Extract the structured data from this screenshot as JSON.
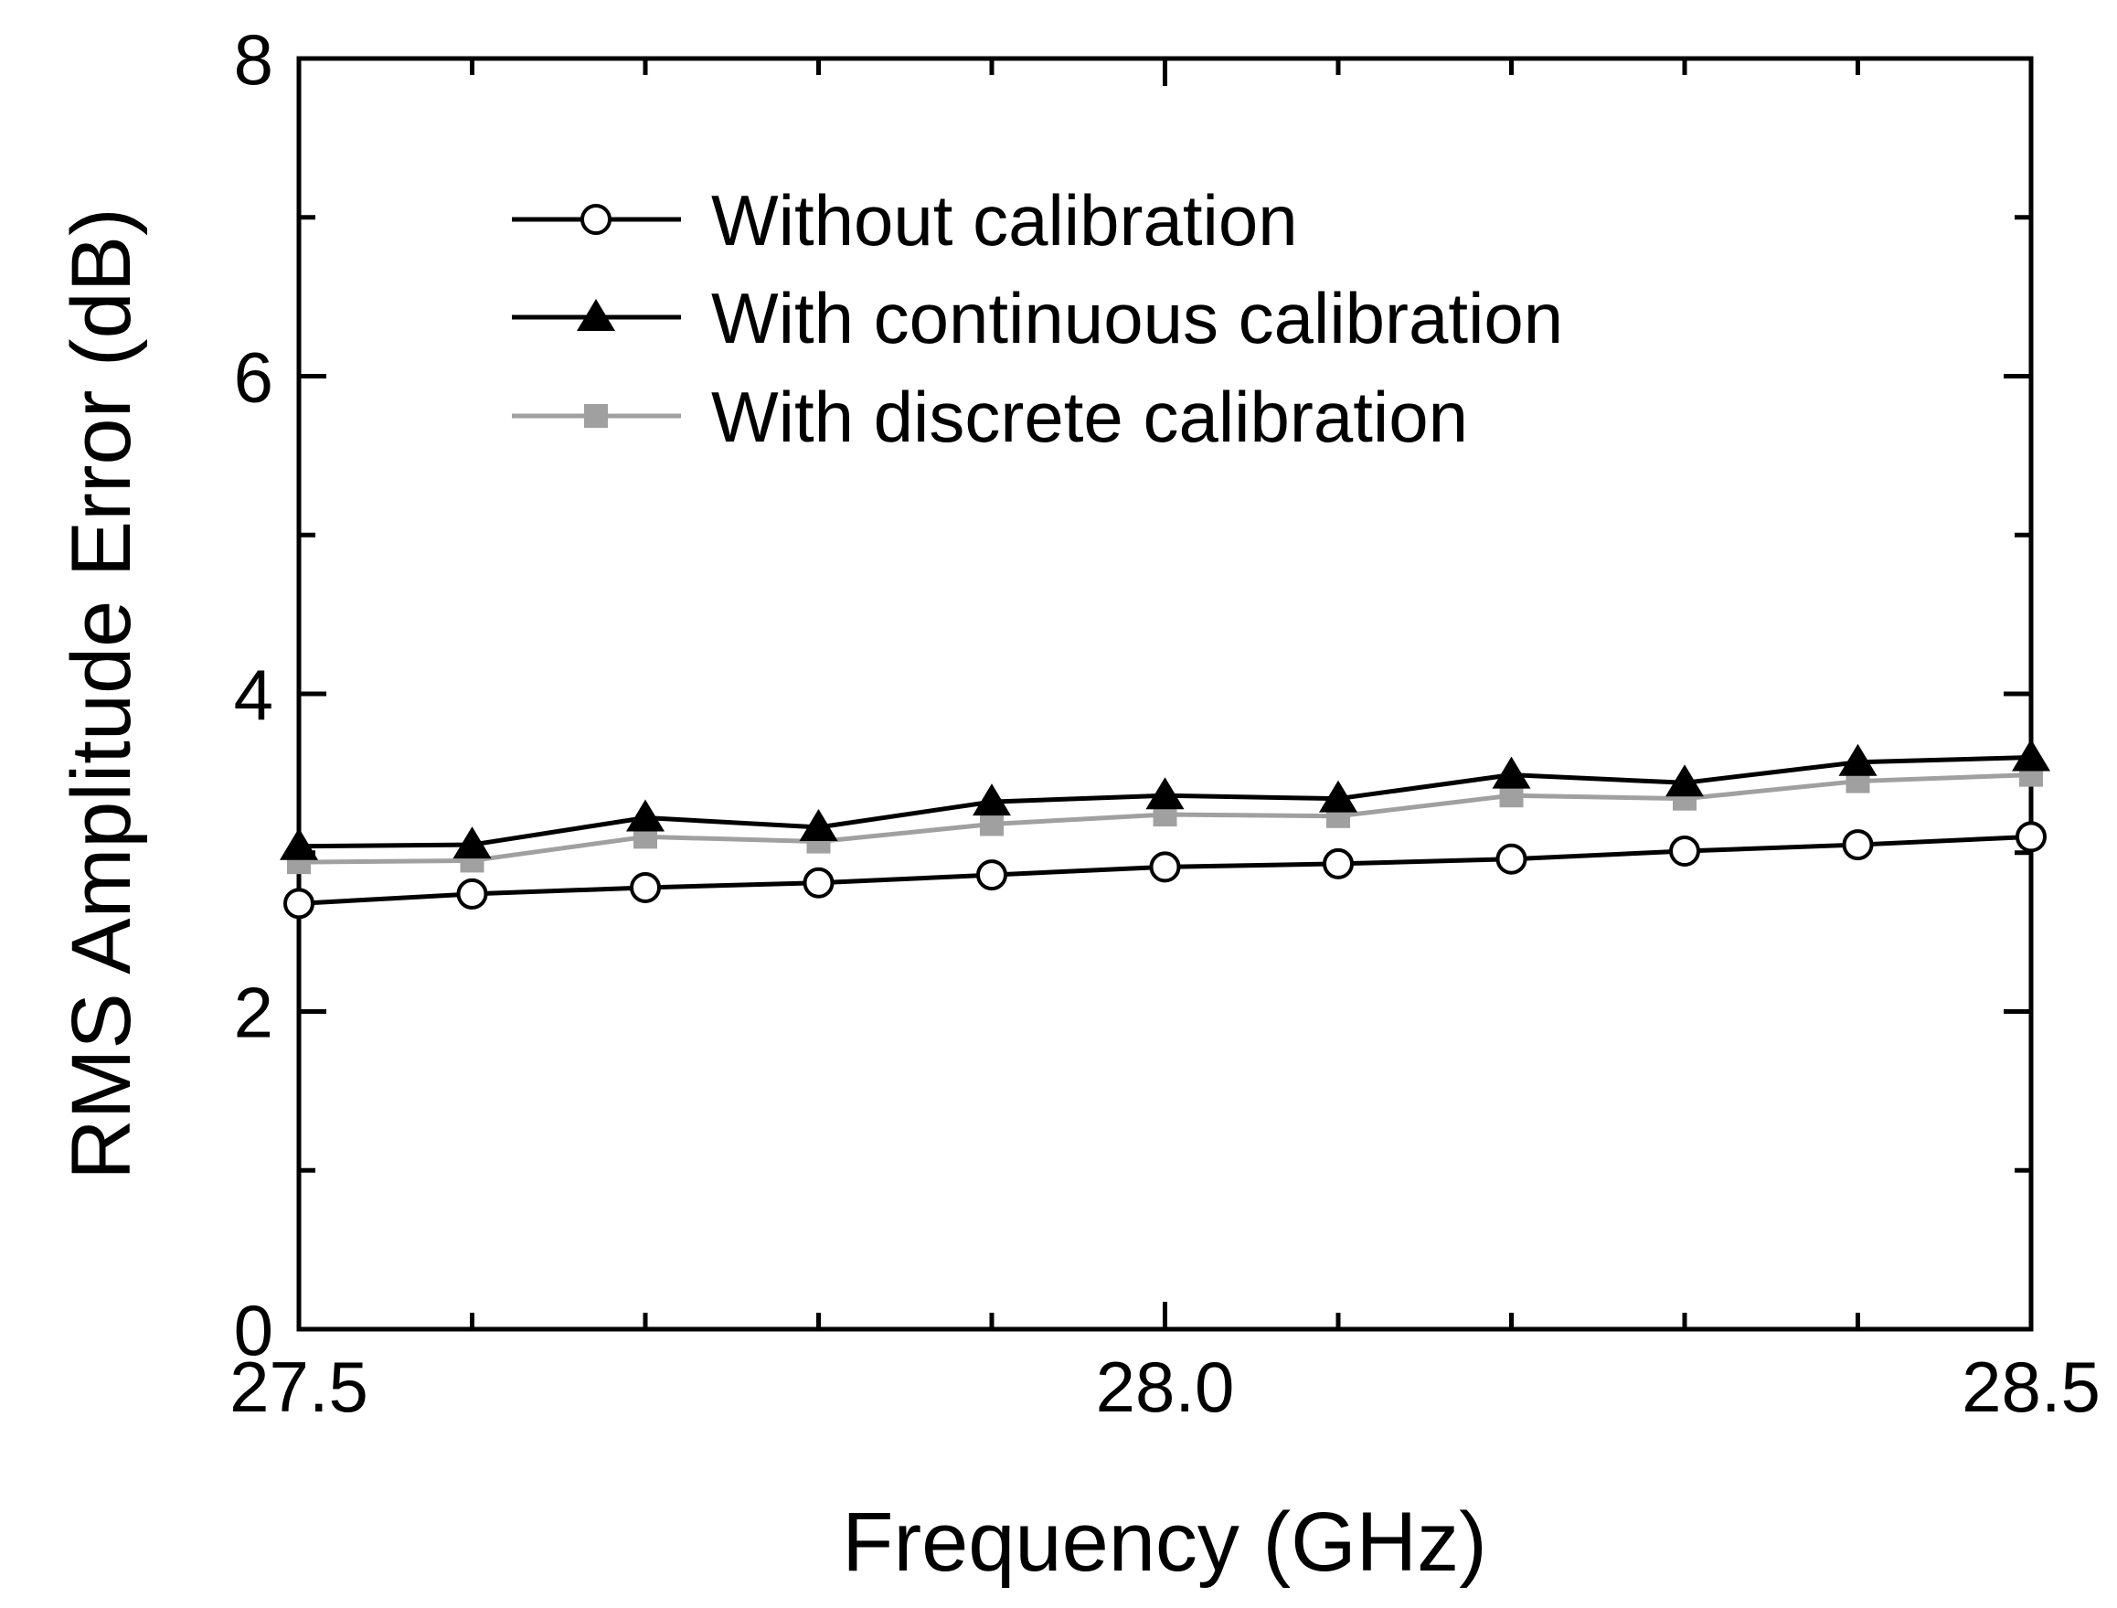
{
  "chart_data": {
    "type": "line",
    "xlabel": "Frequency (GHz)",
    "ylabel": "RMS Amplitude Error (dB)",
    "xlim": [
      27.5,
      28.5
    ],
    "ylim": [
      0,
      8
    ],
    "x_ticks": [
      "27.5",
      "28.0",
      "28.5"
    ],
    "y_ticks": [
      "0",
      "2",
      "4",
      "6",
      "8"
    ],
    "legend_position": "top-left",
    "grid": false,
    "x": [
      27.5,
      27.6,
      27.7,
      27.8,
      27.9,
      28.0,
      28.1,
      28.2,
      28.3,
      28.4,
      28.5
    ],
    "series": [
      {
        "name": "Without calibration",
        "marker": "open-circle",
        "color": "#000000",
        "values": [
          2.68,
          2.74,
          2.78,
          2.81,
          2.86,
          2.91,
          2.93,
          2.96,
          3.01,
          3.05,
          3.1
        ]
      },
      {
        "name": "With continuous calibration",
        "marker": "filled-triangle",
        "color": "#000000",
        "values": [
          3.04,
          3.05,
          3.22,
          3.16,
          3.32,
          3.36,
          3.34,
          3.49,
          3.44,
          3.57,
          3.6
        ]
      },
      {
        "name": "With discrete calibration",
        "marker": "filled-square",
        "color": "#a0a0a0",
        "values": [
          2.94,
          2.95,
          3.1,
          3.07,
          3.18,
          3.24,
          3.23,
          3.36,
          3.34,
          3.45,
          3.49
        ]
      }
    ]
  }
}
